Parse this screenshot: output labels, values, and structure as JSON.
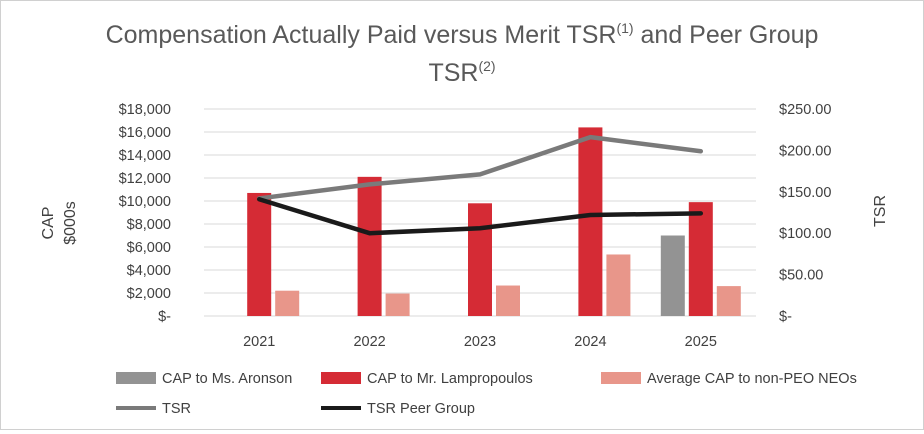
{
  "chart_data": {
    "type": "bar",
    "title_line1": "Compensation Actually Paid versus Merit TSR",
    "title_sup1": "(1)",
    "title_mid": " and Peer Group",
    "title_line2": "TSR",
    "title_sup2": "(2)",
    "categories": [
      "2021",
      "2022",
      "2023",
      "2024",
      "2025"
    ],
    "y_left": {
      "label_line1": "CAP",
      "label_line2": "$000s",
      "min": 0,
      "max": 18000,
      "step": 2000,
      "ticks": [
        "$-",
        "$2,000",
        "$4,000",
        "$6,000",
        "$8,000",
        "$10,000",
        "$12,000",
        "$14,000",
        "$16,000",
        "$18,000"
      ]
    },
    "y_right": {
      "label": "TSR",
      "min": 0,
      "max": 250,
      "step": 50,
      "ticks": [
        "$-",
        "$50.00",
        "$100.00",
        "$150.00",
        "$200.00",
        "$250.00"
      ]
    },
    "bar_series": [
      {
        "name": "CAP to Ms. Aronson",
        "color": "#939393",
        "values": [
          null,
          null,
          null,
          null,
          7000
        ]
      },
      {
        "name": "CAP to Mr. Lampropoulos",
        "color": "#d52b35",
        "values": [
          10700,
          12100,
          9800,
          16400,
          9900
        ]
      },
      {
        "name": "Average CAP to non-PEO NEOs",
        "color": "#e8968a",
        "values": [
          2200,
          1950,
          2650,
          5350,
          2600
        ]
      }
    ],
    "line_series": [
      {
        "name": "TSR",
        "color": "#7a7a7a",
        "values": [
          142,
          159,
          171,
          216,
          199
        ]
      },
      {
        "name": "TSR Peer Group",
        "color": "#1a1a1a",
        "values": [
          141,
          100,
          106,
          122,
          124
        ]
      }
    ],
    "grid": true,
    "legend_position": "bottom"
  }
}
